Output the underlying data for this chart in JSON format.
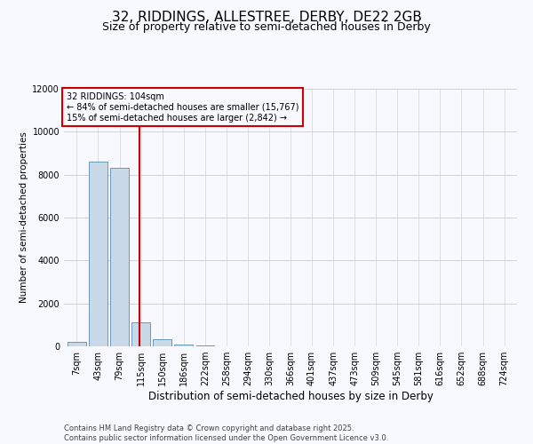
{
  "title1": "32, RIDDINGS, ALLESTREE, DERBY, DE22 2GB",
  "title2": "Size of property relative to semi-detached houses in Derby",
  "xlabel": "Distribution of semi-detached houses by size in Derby",
  "ylabel": "Number of semi-detached properties",
  "annotation_title": "32 RIDDINGS: 104sqm",
  "annotation_line1": "← 84% of semi-detached houses are smaller (15,767)",
  "annotation_line2": "15% of semi-detached houses are larger (2,842) →",
  "footer1": "Contains HM Land Registry data © Crown copyright and database right 2025.",
  "footer2": "Contains public sector information licensed under the Open Government Licence v3.0.",
  "categories": [
    "7sqm",
    "43sqm",
    "79sqm",
    "115sqm",
    "150sqm",
    "186sqm",
    "222sqm",
    "258sqm",
    "294sqm",
    "330sqm",
    "366sqm",
    "401sqm",
    "437sqm",
    "473sqm",
    "509sqm",
    "545sqm",
    "581sqm",
    "616sqm",
    "652sqm",
    "688sqm",
    "724sqm"
  ],
  "values": [
    200,
    8600,
    8300,
    1100,
    350,
    100,
    30,
    0,
    0,
    0,
    0,
    0,
    0,
    0,
    0,
    0,
    0,
    0,
    0,
    0,
    0
  ],
  "bar_color": "#c9d9e8",
  "bar_edge_color": "#6699bb",
  "vline_color": "#cc0000",
  "annotation_box_color": "#cc0000",
  "ylim": [
    0,
    12000
  ],
  "yticks": [
    0,
    2000,
    4000,
    6000,
    8000,
    10000,
    12000
  ],
  "grid_color": "#cccccc",
  "bg_color": "#f8f8ff",
  "title1_fontsize": 11,
  "title2_fontsize": 9,
  "footer_fontsize": 6,
  "annot_fontsize": 7,
  "ylabel_fontsize": 7.5,
  "xlabel_fontsize": 8.5,
  "tick_fontsize": 7
}
